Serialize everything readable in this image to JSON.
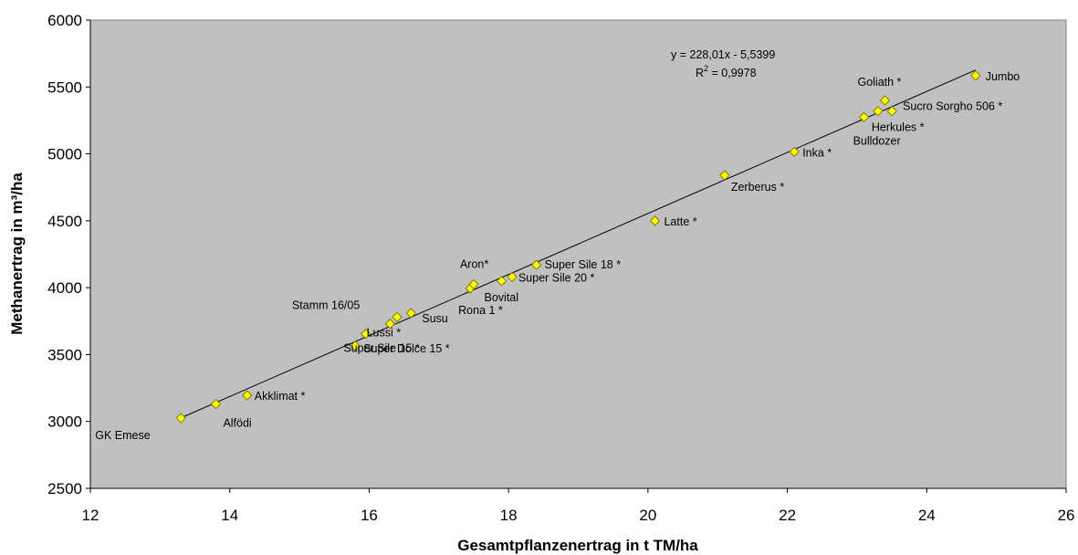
{
  "chart_data": {
    "type": "scatter",
    "xlabel": "Gesamtpflanzenertrag in t TM/ha",
    "ylabel": "Methanertrag in m³/ha",
    "xlim": [
      12,
      26
    ],
    "ylim": [
      2500,
      6000
    ],
    "xticks": [
      12,
      14,
      16,
      18,
      20,
      22,
      24,
      26
    ],
    "yticks": [
      2500,
      3000,
      3500,
      4000,
      4500,
      5000,
      5500,
      6000
    ],
    "grid": false,
    "legend": "none",
    "colors": {
      "plot_background": "#c0c0c0",
      "marker_fill": "#ffff00",
      "marker_stroke": "#7f7f00",
      "trendline": "#000000"
    },
    "trendline": {
      "type": "linear",
      "slope": 228.01,
      "intercept": -5.5399,
      "equation": "y = 228,01x - 5,5399",
      "r2_prefix": "R",
      "r2_sup": "2",
      "r2_value": " = 0,9978"
    },
    "points": [
      {
        "label": "GK Emese",
        "x": 13.3,
        "y": 3025
      },
      {
        "label": "Alfödi",
        "x": 13.8,
        "y": 3130
      },
      {
        "label": "Akklimat *",
        "x": 14.25,
        "y": 3195
      },
      {
        "label": "Super Dolce 15 *",
        "x": 15.8,
        "y": 3565
      },
      {
        "label": "Lussi *",
        "x": 15.95,
        "y": 3655
      },
      {
        "label": "Super Sile 15 *",
        "x": 16.3,
        "y": 3730
      },
      {
        "label": "Stamm 16/05",
        "x": 16.4,
        "y": 3780
      },
      {
        "label": "Susu",
        "x": 16.6,
        "y": 3810
      },
      {
        "label": "Rona 1 *",
        "x": 17.45,
        "y": 3995
      },
      {
        "label": "Aron*",
        "x": 17.5,
        "y": 4025
      },
      {
        "label": "Bovital",
        "x": 17.9,
        "y": 4050
      },
      {
        "label": "Super Sile 20 *",
        "x": 18.05,
        "y": 4080
      },
      {
        "label": "Super Sile 18 *",
        "x": 18.4,
        "y": 4170
      },
      {
        "label": "Latte *",
        "x": 20.1,
        "y": 4500
      },
      {
        "label": "Zerberus *",
        "x": 21.1,
        "y": 4840
      },
      {
        "label": "Inka *",
        "x": 22.1,
        "y": 5015
      },
      {
        "label": "Bulldozer",
        "x": 23.1,
        "y": 5275
      },
      {
        "label": "Herkules *",
        "x": 23.3,
        "y": 5320
      },
      {
        "label": "Goliath *",
        "x": 23.4,
        "y": 5400
      },
      {
        "label": "Sucro Sorgho 506 *",
        "x": 23.5,
        "y": 5320
      },
      {
        "label": "Jumbo",
        "x": 24.7,
        "y": 5585
      }
    ]
  }
}
